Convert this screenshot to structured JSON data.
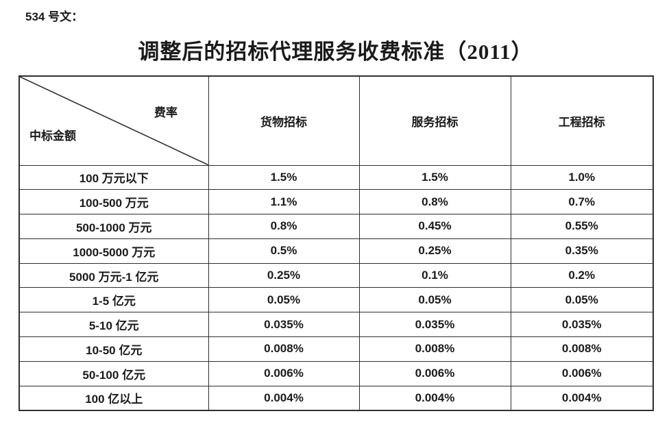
{
  "page": {
    "doc_label": "534 号文：",
    "title": "调整后的招标代理服务收费标准（2011）"
  },
  "table": {
    "corner": {
      "rate_label": "费率",
      "amount_label": "中标金额"
    },
    "columns": [
      "货物招标",
      "服务招标",
      "工程招标"
    ],
    "rows": [
      {
        "label": "100 万元以下",
        "values": [
          "1.5%",
          "1.5%",
          "1.0%"
        ]
      },
      {
        "label": "100-500 万元",
        "values": [
          "1.1%",
          "0.8%",
          "0.7%"
        ]
      },
      {
        "label": "500-1000 万元",
        "values": [
          "0.8%",
          "0.45%",
          "0.55%"
        ]
      },
      {
        "label": "1000-5000 万元",
        "values": [
          "0.5%",
          "0.25%",
          "0.35%"
        ]
      },
      {
        "label": "5000 万元-1 亿元",
        "values": [
          "0.25%",
          "0.1%",
          "0.2%"
        ]
      },
      {
        "label": "1-5 亿元",
        "values": [
          "0.05%",
          "0.05%",
          "0.05%"
        ]
      },
      {
        "label": "5-10 亿元",
        "values": [
          "0.035%",
          "0.035%",
          "0.035%"
        ]
      },
      {
        "label": "10-50 亿元",
        "values": [
          "0.008%",
          "0.008%",
          "0.008%"
        ]
      },
      {
        "label": "50-100 亿元",
        "values": [
          "0.006%",
          "0.006%",
          "0.006%"
        ]
      },
      {
        "label": "100 亿以上",
        "values": [
          "0.004%",
          "0.004%",
          "0.004%"
        ]
      }
    ],
    "colors": {
      "text": "#1a1a1a",
      "border": "#2e2e2e",
      "background": "#ffffff"
    }
  }
}
